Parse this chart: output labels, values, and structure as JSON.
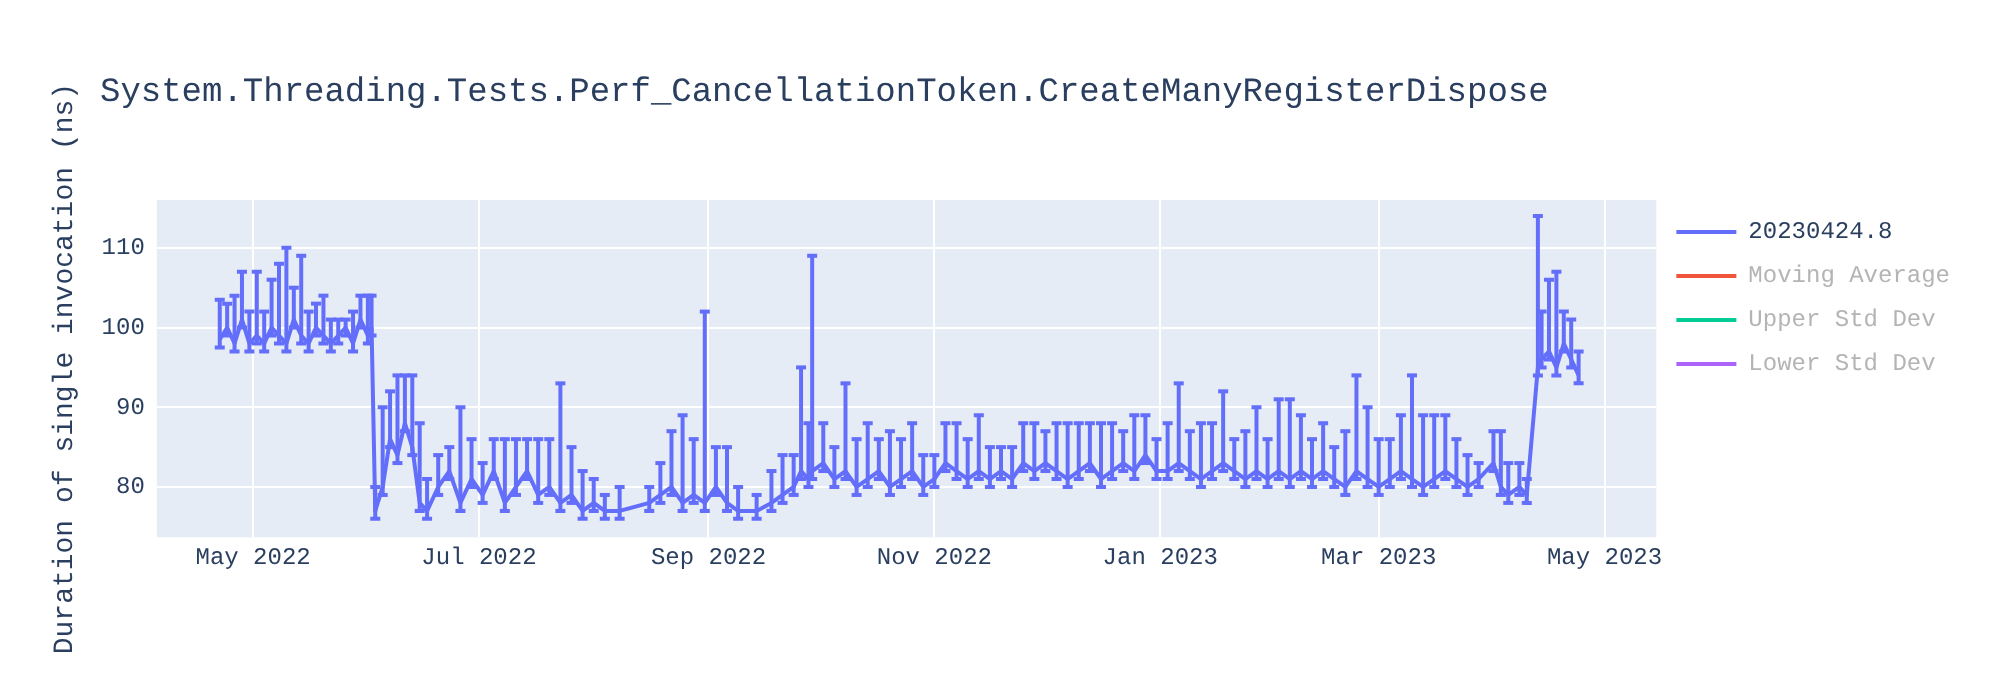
{
  "chart_data": {
    "type": "line",
    "title": "System.Threading.Tests.Perf_CancellationToken.CreateManyRegisterDispose",
    "ylabel": "Duration of single invocation (ns)",
    "x": [
      "2022-04-22",
      "2022-04-24",
      "2022-04-26",
      "2022-04-28",
      "2022-04-30",
      "2022-05-02",
      "2022-05-04",
      "2022-05-06",
      "2022-05-08",
      "2022-05-10",
      "2022-05-12",
      "2022-05-14",
      "2022-05-16",
      "2022-05-18",
      "2022-05-20",
      "2022-05-22",
      "2022-05-24",
      "2022-05-26",
      "2022-05-28",
      "2022-05-30",
      "2022-06-01",
      "2022-06-02",
      "2022-06-03",
      "2022-06-05",
      "2022-06-07",
      "2022-06-09",
      "2022-06-11",
      "2022-06-13",
      "2022-06-15",
      "2022-06-17",
      "2022-06-20",
      "2022-06-23",
      "2022-06-26",
      "2022-06-29",
      "2022-07-02",
      "2022-07-05",
      "2022-07-08",
      "2022-07-11",
      "2022-07-14",
      "2022-07-17",
      "2022-07-20",
      "2022-07-23",
      "2022-07-26",
      "2022-07-29",
      "2022-08-01",
      "2022-08-04",
      "2022-08-08",
      "2022-08-16",
      "2022-08-19",
      "2022-08-22",
      "2022-08-25",
      "2022-08-28",
      "2022-08-31",
      "2022-09-03",
      "2022-09-06",
      "2022-09-09",
      "2022-09-14",
      "2022-09-18",
      "2022-09-21",
      "2022-09-24",
      "2022-09-26",
      "2022-09-28",
      "2022-09-29",
      "2022-10-02",
      "2022-10-05",
      "2022-10-08",
      "2022-10-11",
      "2022-10-14",
      "2022-10-17",
      "2022-10-20",
      "2022-10-23",
      "2022-10-26",
      "2022-10-29",
      "2022-11-01",
      "2022-11-04",
      "2022-11-07",
      "2022-11-10",
      "2022-11-13",
      "2022-11-16",
      "2022-11-19",
      "2022-11-22",
      "2022-11-25",
      "2022-11-28",
      "2022-12-01",
      "2022-12-04",
      "2022-12-07",
      "2022-12-10",
      "2022-12-13",
      "2022-12-16",
      "2022-12-19",
      "2022-12-22",
      "2022-12-25",
      "2022-12-28",
      "2022-12-31",
      "2023-01-03",
      "2023-01-06",
      "2023-01-09",
      "2023-01-12",
      "2023-01-15",
      "2023-01-18",
      "2023-01-21",
      "2023-01-24",
      "2023-01-27",
      "2023-01-30",
      "2023-02-02",
      "2023-02-05",
      "2023-02-08",
      "2023-02-11",
      "2023-02-14",
      "2023-02-17",
      "2023-02-20",
      "2023-02-23",
      "2023-02-26",
      "2023-03-01",
      "2023-03-04",
      "2023-03-07",
      "2023-03-10",
      "2023-03-13",
      "2023-03-16",
      "2023-03-19",
      "2023-03-22",
      "2023-03-25",
      "2023-03-28",
      "2023-04-01",
      "2023-04-03",
      "2023-04-05",
      "2023-04-08",
      "2023-04-10",
      "2023-04-13",
      "2023-04-14",
      "2023-04-16",
      "2023-04-18",
      "2023-04-20",
      "2023-04-22",
      "2023-04-24"
    ],
    "series": [
      {
        "name": "20230424.8",
        "color": "#636efa",
        "values": [
          98.5,
          100,
          98,
          101,
          98,
          99,
          98,
          100,
          99,
          98,
          101,
          99,
          98,
          100,
          99,
          98,
          99,
          100,
          98,
          101,
          99,
          100,
          77,
          80,
          86,
          84,
          88,
          85,
          78,
          77,
          80,
          82,
          78,
          81,
          79,
          82,
          78,
          80,
          82,
          79,
          80,
          78,
          79,
          77,
          78,
          77,
          77,
          78,
          79,
          80,
          78,
          79,
          78,
          80,
          78,
          77,
          77,
          78,
          79,
          80,
          82,
          81,
          82,
          83,
          81,
          82,
          80,
          81,
          82,
          80,
          81,
          82,
          80,
          81,
          83,
          82,
          81,
          82,
          81,
          82,
          81,
          83,
          82,
          83,
          82,
          81,
          82,
          83,
          81,
          82,
          83,
          82,
          84,
          82,
          82,
          83,
          82,
          81,
          82,
          83,
          82,
          81,
          82,
          81,
          82,
          81,
          82,
          81,
          82,
          81,
          80,
          82,
          81,
          80,
          81,
          82,
          81,
          80,
          81,
          82,
          81,
          80,
          81,
          83,
          80,
          79,
          80,
          79,
          95,
          96,
          97,
          95,
          98,
          96,
          94
        ],
        "errors": [
          [
            97.5,
            103.5
          ],
          [
            99,
            103
          ],
          [
            97,
            104
          ],
          [
            100,
            107
          ],
          [
            97,
            102
          ],
          [
            98,
            107
          ],
          [
            97,
            102
          ],
          [
            99,
            106
          ],
          [
            98,
            108
          ],
          [
            97,
            110
          ],
          [
            100,
            105
          ],
          [
            98,
            109
          ],
          [
            97,
            102
          ],
          [
            99,
            103
          ],
          [
            98,
            104
          ],
          [
            97,
            101
          ],
          [
            98,
            101
          ],
          [
            99,
            101
          ],
          [
            97,
            102
          ],
          [
            100,
            104
          ],
          [
            98,
            104
          ],
          [
            99,
            104
          ],
          [
            76,
            80
          ],
          [
            79,
            90
          ],
          [
            85,
            92
          ],
          [
            83,
            94
          ],
          [
            87,
            94
          ],
          [
            84,
            94
          ],
          [
            77,
            88
          ],
          [
            76,
            81
          ],
          [
            79,
            84
          ],
          [
            81,
            85
          ],
          [
            77,
            90
          ],
          [
            80,
            86
          ],
          [
            78,
            83
          ],
          [
            81,
            86
          ],
          [
            77,
            86
          ],
          [
            79,
            86
          ],
          [
            81,
            86
          ],
          [
            78,
            86
          ],
          [
            79,
            86
          ],
          [
            77,
            93
          ],
          [
            78,
            85
          ],
          [
            76,
            82
          ],
          [
            77,
            81
          ],
          [
            76,
            79
          ],
          [
            76,
            80
          ],
          [
            77,
            80
          ],
          [
            78,
            83
          ],
          [
            79,
            87
          ],
          [
            77,
            89
          ],
          [
            78,
            86
          ],
          [
            77,
            102
          ],
          [
            79,
            85
          ],
          [
            77,
            85
          ],
          [
            76,
            80
          ],
          [
            76,
            79
          ],
          [
            77,
            82
          ],
          [
            78,
            84
          ],
          [
            79,
            84
          ],
          [
            81,
            95
          ],
          [
            80,
            88
          ],
          [
            81,
            109
          ],
          [
            82,
            88
          ],
          [
            80,
            85
          ],
          [
            81,
            93
          ],
          [
            79,
            86
          ],
          [
            80,
            88
          ],
          [
            81,
            86
          ],
          [
            79,
            87
          ],
          [
            80,
            86
          ],
          [
            81,
            88
          ],
          [
            79,
            84
          ],
          [
            80,
            84
          ],
          [
            82,
            88
          ],
          [
            81,
            88
          ],
          [
            80,
            86
          ],
          [
            81,
            89
          ],
          [
            80,
            85
          ],
          [
            81,
            85
          ],
          [
            80,
            85
          ],
          [
            82,
            88
          ],
          [
            81,
            88
          ],
          [
            82,
            87
          ],
          [
            81,
            88
          ],
          [
            80,
            88
          ],
          [
            81,
            88
          ],
          [
            82,
            88
          ],
          [
            80,
            88
          ],
          [
            81,
            88
          ],
          [
            82,
            87
          ],
          [
            81,
            89
          ],
          [
            83,
            89
          ],
          [
            81,
            86
          ],
          [
            81,
            88
          ],
          [
            82,
            93
          ],
          [
            81,
            87
          ],
          [
            80,
            88
          ],
          [
            81,
            88
          ],
          [
            82,
            92
          ],
          [
            81,
            86
          ],
          [
            80,
            87
          ],
          [
            81,
            90
          ],
          [
            80,
            86
          ],
          [
            81,
            91
          ],
          [
            80,
            91
          ],
          [
            81,
            89
          ],
          [
            80,
            86
          ],
          [
            81,
            88
          ],
          [
            80,
            85
          ],
          [
            79,
            87
          ],
          [
            81,
            94
          ],
          [
            80,
            90
          ],
          [
            79,
            86
          ],
          [
            80,
            86
          ],
          [
            81,
            89
          ],
          [
            80,
            94
          ],
          [
            79,
            89
          ],
          [
            80,
            89
          ],
          [
            81,
            89
          ],
          [
            80,
            86
          ],
          [
            79,
            84
          ],
          [
            80,
            83
          ],
          [
            82,
            87
          ],
          [
            79,
            87
          ],
          [
            78,
            83
          ],
          [
            79,
            83
          ],
          [
            78,
            81
          ],
          [
            94,
            114
          ],
          [
            95,
            102
          ],
          [
            96,
            106
          ],
          [
            94,
            107
          ],
          [
            97,
            102
          ],
          [
            95,
            101
          ],
          [
            93,
            97
          ]
        ]
      },
      {
        "name": "Moving Average",
        "color": "#ef553b",
        "values": [
          null,
          null,
          null,
          null,
          null,
          null,
          null,
          null,
          null,
          null,
          null,
          null,
          null,
          null,
          null,
          null,
          null,
          null,
          null,
          null,
          null,
          null,
          null,
          null,
          null,
          null,
          null,
          null,
          null,
          null,
          null,
          null,
          null,
          null,
          null,
          null,
          null,
          null,
          null,
          null,
          null,
          null,
          null,
          null,
          null,
          null,
          null,
          null,
          null,
          null,
          null,
          null,
          null,
          null,
          null,
          null,
          null,
          null,
          null,
          null,
          null,
          null,
          null,
          null,
          null,
          null,
          null,
          null,
          null,
          null,
          null,
          null,
          null,
          null,
          null,
          null,
          null,
          null,
          null,
          null,
          null,
          null,
          null,
          null,
          null,
          null,
          null,
          null,
          null,
          null,
          null,
          null,
          null,
          null,
          null,
          null,
          null,
          null,
          null,
          null,
          null,
          null,
          null,
          null,
          null,
          null,
          null,
          null,
          null,
          null,
          null,
          null,
          null,
          null,
          null,
          null,
          null,
          null,
          null,
          null,
          null,
          null,
          null,
          null,
          null,
          null,
          null,
          null,
          null,
          null,
          null,
          null,
          null,
          null,
          null
        ]
      },
      {
        "name": "Upper Std Dev",
        "color": "#00cc96",
        "values": [
          null,
          null,
          null,
          null,
          null,
          null,
          null,
          null,
          null,
          null,
          null,
          null,
          null,
          null,
          null,
          null,
          null,
          null,
          null,
          null,
          null,
          null,
          null,
          null,
          null,
          null,
          null,
          null,
          null,
          null,
          null,
          null,
          null,
          null,
          null,
          null,
          null,
          null,
          null,
          null,
          null,
          null,
          null,
          null,
          null,
          null,
          null,
          null,
          null,
          null,
          null,
          null,
          null,
          null,
          null,
          null,
          null,
          null,
          null,
          null,
          null,
          null,
          null,
          null,
          null,
          null,
          null,
          null,
          null,
          null,
          null,
          null,
          null,
          null,
          null,
          null,
          null,
          null,
          null,
          null,
          null,
          null,
          null,
          null,
          null,
          null,
          null,
          null,
          null,
          null,
          null,
          null,
          null,
          null,
          null,
          null,
          null,
          null,
          null,
          null,
          null,
          null,
          null,
          null,
          null,
          null,
          null,
          null,
          null,
          null,
          null,
          null,
          null,
          null,
          null,
          null,
          null,
          null,
          null,
          null,
          null,
          null,
          null,
          null,
          null,
          null,
          null,
          null,
          null,
          null,
          null,
          null,
          null,
          null,
          null
        ]
      },
      {
        "name": "Lower Std Dev",
        "color": "#ab63fa",
        "values": [
          null,
          null,
          null,
          null,
          null,
          null,
          null,
          null,
          null,
          null,
          null,
          null,
          null,
          null,
          null,
          null,
          null,
          null,
          null,
          null,
          null,
          null,
          null,
          null,
          null,
          null,
          null,
          null,
          null,
          null,
          null,
          null,
          null,
          null,
          null,
          null,
          null,
          null,
          null,
          null,
          null,
          null,
          null,
          null,
          null,
          null,
          null,
          null,
          null,
          null,
          null,
          null,
          null,
          null,
          null,
          null,
          null,
          null,
          null,
          null,
          null,
          null,
          null,
          null,
          null,
          null,
          null,
          null,
          null,
          null,
          null,
          null,
          null,
          null,
          null,
          null,
          null,
          null,
          null,
          null,
          null,
          null,
          null,
          null,
          null,
          null,
          null,
          null,
          null,
          null,
          null,
          null,
          null,
          null,
          null,
          null,
          null,
          null,
          null,
          null,
          null,
          null,
          null,
          null,
          null,
          null,
          null,
          null,
          null,
          null,
          null,
          null,
          null,
          null,
          null,
          null,
          null,
          null,
          null,
          null,
          null,
          null,
          null,
          null,
          null,
          null,
          null,
          null,
          null,
          null,
          null,
          null,
          null,
          null,
          null
        ]
      }
    ],
    "xlim": [
      "2022-04-05",
      "2023-05-15"
    ],
    "xticks": [
      {
        "value": "2022-05-01",
        "label": "May 2022"
      },
      {
        "value": "2022-07-01",
        "label": "Jul 2022"
      },
      {
        "value": "2022-09-01",
        "label": "Sep 2022"
      },
      {
        "value": "2022-11-01",
        "label": "Nov 2022"
      },
      {
        "value": "2023-01-01",
        "label": "Jan 2023"
      },
      {
        "value": "2023-03-01",
        "label": "Mar 2023"
      },
      {
        "value": "2023-05-01",
        "label": "May 2023"
      }
    ],
    "ylim": [
      73.7,
      116
    ],
    "yticks": [
      80,
      90,
      100,
      110
    ],
    "grid": true,
    "legend": "top right",
    "marker": "none",
    "line_style": "solid"
  }
}
